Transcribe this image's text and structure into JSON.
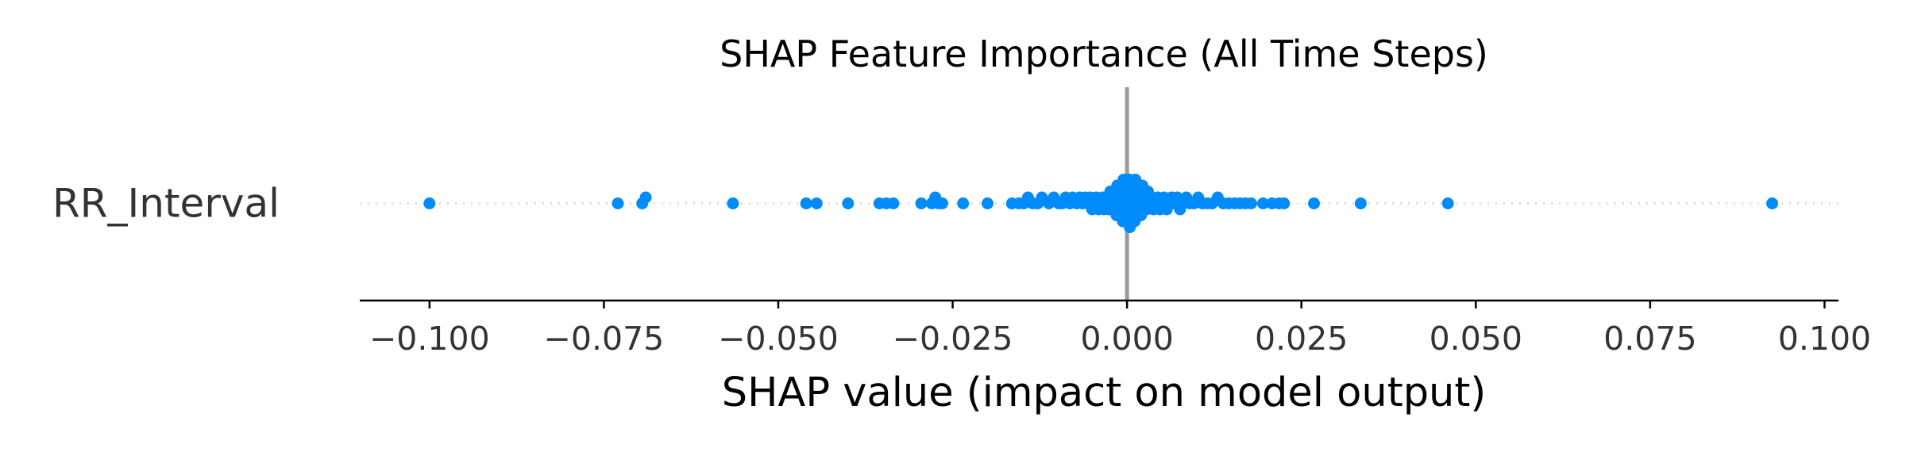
{
  "chart_data": {
    "type": "scatter",
    "title": "SHAP Feature Importance (All Time Steps)",
    "xlabel": "SHAP value (impact on model output)",
    "ylabel": "",
    "xlim": [
      -0.11,
      0.102
    ],
    "xticks": [
      -0.1,
      -0.075,
      -0.05,
      -0.025,
      0.0,
      0.025,
      0.05,
      0.075,
      0.1
    ],
    "xtick_labels": [
      "−0.100",
      "−0.075",
      "−0.050",
      "−0.025",
      "0.000",
      "0.025",
      "0.050",
      "0.075",
      "0.100"
    ],
    "grid": false,
    "legend": "none",
    "zero_line": true,
    "zero_line_color": "#999999",
    "point_color": "#008bfb",
    "features": [
      {
        "name": "RR_Interval",
        "shap_values": [
          -0.1,
          -0.073,
          -0.0695,
          -0.069,
          -0.0565,
          -0.046,
          -0.0445,
          -0.04,
          -0.0355,
          -0.0345,
          -0.0335,
          -0.0295,
          -0.028,
          -0.0275,
          -0.027,
          -0.0265,
          -0.0235,
          -0.02,
          -0.0165,
          -0.0155,
          -0.0148,
          -0.0142,
          -0.0135,
          -0.0128,
          -0.0122,
          -0.0112,
          -0.0105,
          -0.0098,
          -0.0093,
          -0.0088,
          -0.0082,
          -0.0078,
          -0.0072,
          -0.0068,
          -0.0064,
          -0.006,
          -0.0057,
          -0.0053,
          -0.005,
          -0.0047,
          -0.0044,
          -0.0041,
          -0.0038,
          -0.0035,
          -0.0033,
          -0.003,
          -0.0028,
          -0.0026,
          -0.0024,
          -0.0022,
          -0.002,
          -0.0018,
          -0.0017,
          -0.0015,
          -0.0014,
          -0.0012,
          -0.0011,
          -0.001,
          -0.0009,
          -0.0008,
          -0.0007,
          -0.0006,
          -0.0005,
          -0.0004,
          -0.0003,
          -0.0002,
          -0.0001,
          0.0,
          0.0001,
          0.0002,
          0.0003,
          0.0004,
          0.0005,
          0.0006,
          0.0007,
          0.0008,
          0.0009,
          0.001,
          0.0011,
          0.0012,
          0.0014,
          0.0015,
          0.0017,
          0.0018,
          0.002,
          0.0022,
          0.0024,
          0.0026,
          0.0028,
          0.003,
          0.0033,
          0.0035,
          0.0038,
          0.0041,
          0.0044,
          0.0047,
          0.005,
          0.0053,
          0.0057,
          0.006,
          0.0064,
          0.0068,
          0.0072,
          0.0076,
          0.008,
          0.0085,
          0.009,
          0.0096,
          0.0102,
          0.0108,
          0.0115,
          0.0122,
          0.013,
          0.0138,
          0.0146,
          0.0154,
          0.0162,
          0.017,
          0.0178,
          0.0195,
          0.0208,
          0.0218,
          0.0225,
          0.0268,
          0.0335,
          0.046,
          0.0925
        ]
      }
    ]
  }
}
